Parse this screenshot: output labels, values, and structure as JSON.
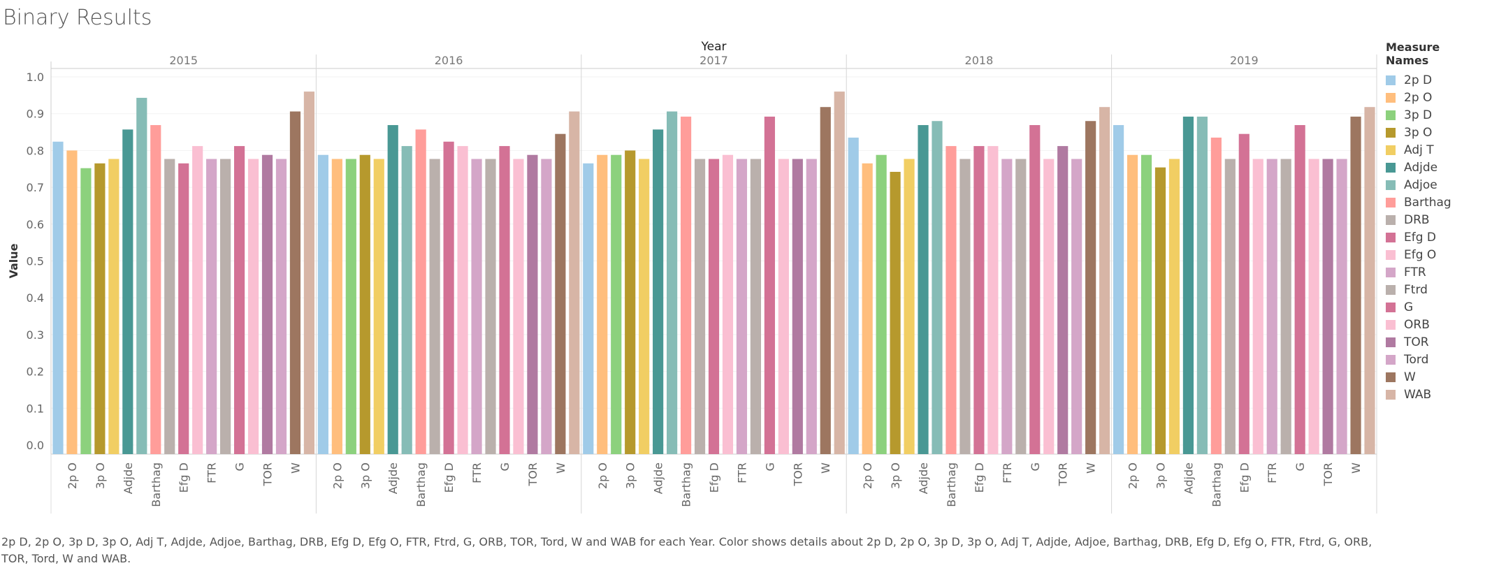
{
  "page": {
    "title": "Binary Results",
    "caption": "2p D, 2p O, 3p D, 3p O, Adj T, Adjde, Adjoe, Barthag, DRB, Efg D, Efg O, FTR, Ftrd, G, ORB, TOR, Tord, W and WAB for each Year.  Color shows details about 2p D, 2p O, 3p D, 3p O, Adj T, Adjde, Adjoe, Barthag, DRB, Efg D, Efg O, FTR, Ftrd, G, ORB, TOR, Tord, W and WAB."
  },
  "legend": {
    "title": "Measure Names",
    "items": [
      {
        "label": "2p D",
        "color": "#a0cbe8"
      },
      {
        "label": "2p O",
        "color": "#ffbe7d"
      },
      {
        "label": "3p D",
        "color": "#8cd17d"
      },
      {
        "label": "3p O",
        "color": "#b6992d"
      },
      {
        "label": "Adj T",
        "color": "#f1ce63"
      },
      {
        "label": "Adjde",
        "color": "#499894"
      },
      {
        "label": "Adjoe",
        "color": "#86bcb6"
      },
      {
        "label": "Barthag",
        "color": "#ff9d9a"
      },
      {
        "label": "DRB",
        "color": "#bab0ac"
      },
      {
        "label": "Efg D",
        "color": "#d37295"
      },
      {
        "label": "Efg O",
        "color": "#fabfd2"
      },
      {
        "label": "FTR",
        "color": "#d4a6c8"
      },
      {
        "label": "Ftrd",
        "color": "#bab0ac"
      },
      {
        "label": "G",
        "color": "#d37295"
      },
      {
        "label": "ORB",
        "color": "#fabfd2"
      },
      {
        "label": "TOR",
        "color": "#b07aa1"
      },
      {
        "label": "Tord",
        "color": "#d4a6c8"
      },
      {
        "label": "W",
        "color": "#9d7660"
      },
      {
        "label": "WAB",
        "color": "#d7b5a6"
      }
    ]
  },
  "chart_data": {
    "type": "bar",
    "title": "Binary Results",
    "column_header": "Year",
    "ylabel": "Value",
    "ylim": [
      0,
      1.0
    ],
    "yticks": [
      "0.0",
      "0.1",
      "0.2",
      "0.3",
      "0.4",
      "0.5",
      "0.6",
      "0.7",
      "0.8",
      "0.9",
      "1.0"
    ],
    "grid": true,
    "legend_position": "right",
    "categories": [
      "2p D",
      "2p O",
      "3p D",
      "3p O",
      "Adj T",
      "Adjde",
      "Adjoe",
      "Barthag",
      "DRB",
      "Efg D",
      "Efg O",
      "FTR",
      "Ftrd",
      "G",
      "ORB",
      "TOR",
      "Tord",
      "W",
      "WAB"
    ],
    "x_tick_labels": [
      "2p O",
      "3p O",
      "Adjde",
      "Barthag",
      "Efg D",
      "FTR",
      "G",
      "TOR",
      "W"
    ],
    "panels": [
      {
        "year": "2015",
        "values": [
          0.824,
          0.8,
          0.752,
          0.765,
          0.777,
          0.857,
          0.943,
          0.869,
          0.777,
          0.765,
          0.812,
          0.777,
          0.777,
          0.812,
          0.777,
          0.788,
          0.777,
          0.906,
          0.96
        ]
      },
      {
        "year": "2016",
        "values": [
          0.788,
          0.777,
          0.777,
          0.788,
          0.777,
          0.869,
          0.812,
          0.857,
          0.777,
          0.824,
          0.812,
          0.777,
          0.777,
          0.812,
          0.777,
          0.788,
          0.777,
          0.845,
          0.906
        ]
      },
      {
        "year": "2017",
        "values": [
          0.765,
          0.788,
          0.788,
          0.8,
          0.777,
          0.857,
          0.906,
          0.892,
          0.777,
          0.777,
          0.788,
          0.777,
          0.777,
          0.892,
          0.777,
          0.777,
          0.777,
          0.918,
          0.96
        ]
      },
      {
        "year": "2018",
        "values": [
          0.835,
          0.765,
          0.788,
          0.742,
          0.777,
          0.869,
          0.88,
          0.812,
          0.777,
          0.812,
          0.812,
          0.777,
          0.777,
          0.869,
          0.777,
          0.812,
          0.777,
          0.88,
          0.918
        ]
      },
      {
        "year": "2019",
        "values": [
          0.869,
          0.788,
          0.788,
          0.754,
          0.777,
          0.892,
          0.892,
          0.835,
          0.777,
          0.845,
          0.777,
          0.777,
          0.777,
          0.869,
          0.777,
          0.777,
          0.777,
          0.892,
          0.918
        ]
      }
    ]
  }
}
